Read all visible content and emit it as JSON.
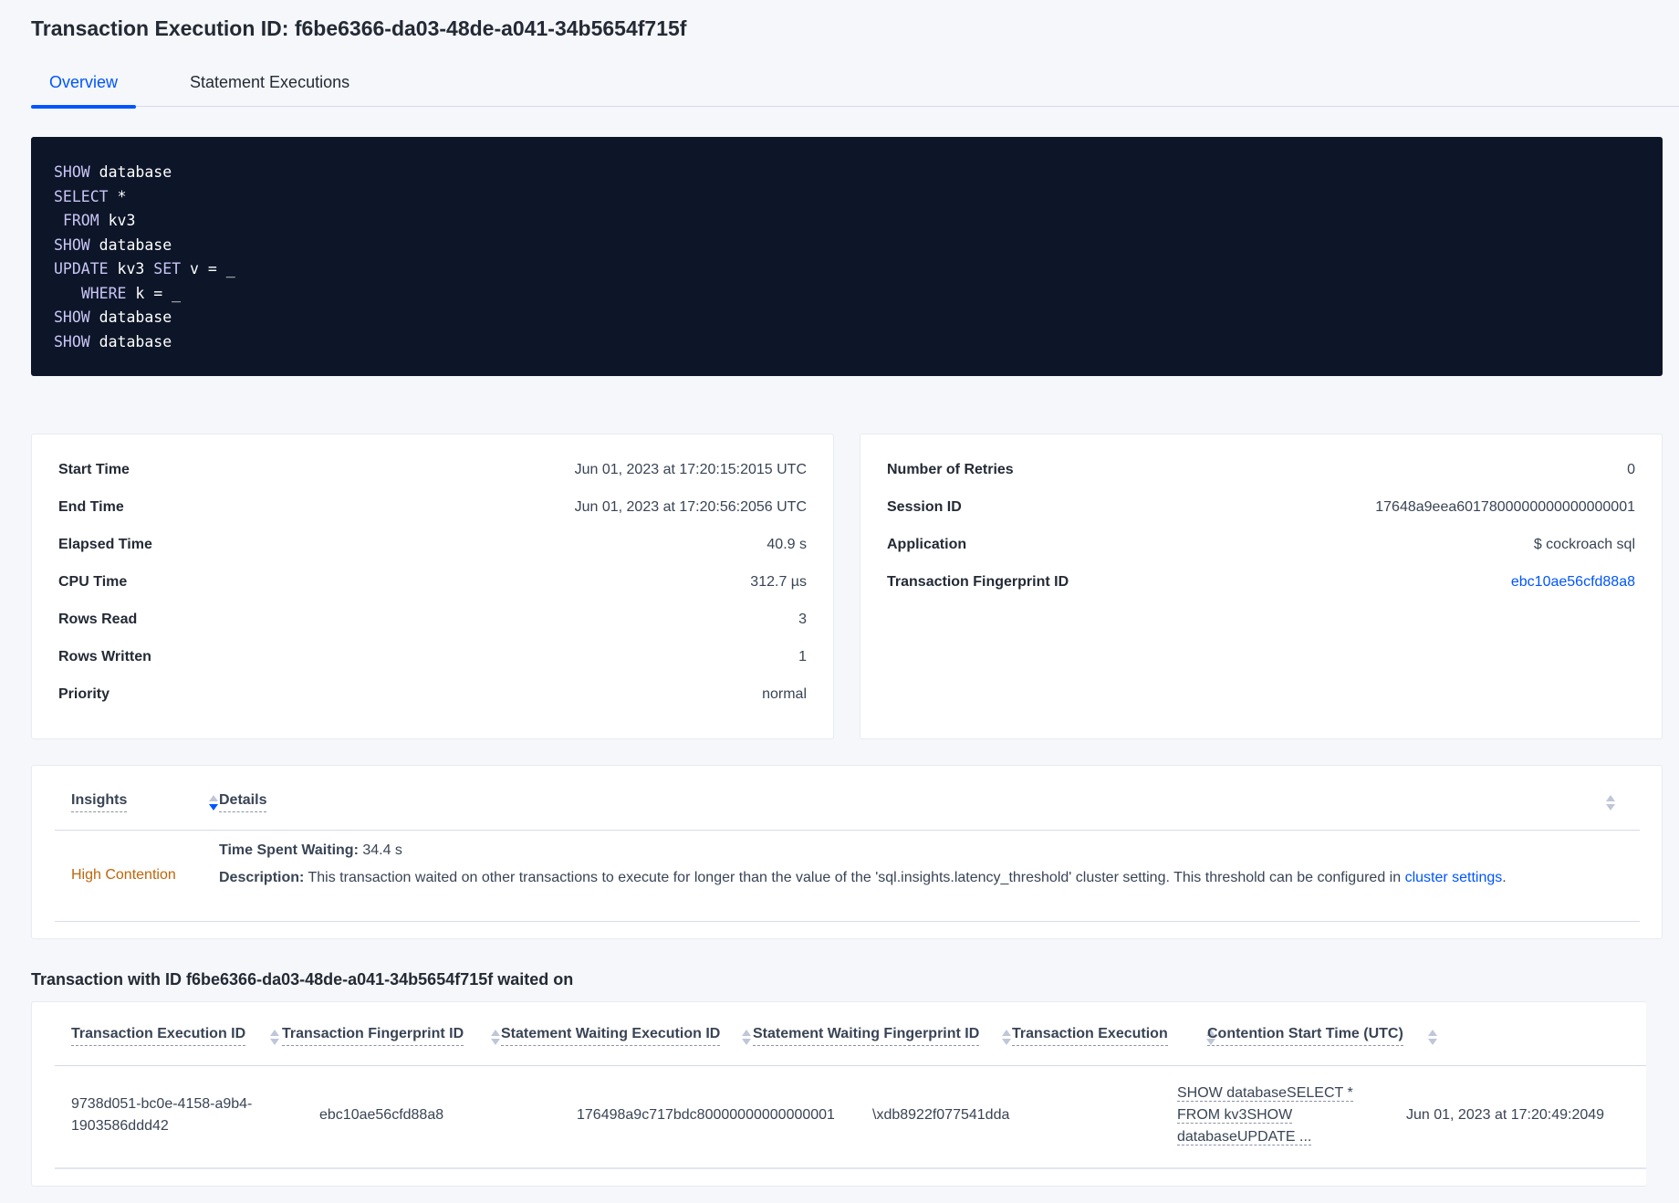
{
  "title": "Transaction Execution ID: f6be6366-da03-48de-a041-34b5654f715f",
  "tabs": [
    {
      "label": "Overview",
      "active": true
    },
    {
      "label": "Statement Executions",
      "active": false
    }
  ],
  "sql": [
    [
      {
        "kw": "SHOW"
      },
      {
        "t": " database"
      }
    ],
    [
      {
        "kw": "SELECT"
      },
      {
        "t": " *"
      }
    ],
    [
      {
        "t": " "
      },
      {
        "kw": "FROM"
      },
      {
        "t": " kv3"
      }
    ],
    [
      {
        "kw": "SHOW"
      },
      {
        "t": " database"
      }
    ],
    [
      {
        "kw": "UPDATE"
      },
      {
        "t": " kv3 "
      },
      {
        "kw": "SET"
      },
      {
        "t": " v = _"
      }
    ],
    [
      {
        "t": "   "
      },
      {
        "kw": "WHERE"
      },
      {
        "t": " k = _"
      }
    ],
    [
      {
        "kw": "SHOW"
      },
      {
        "t": " database"
      }
    ],
    [
      {
        "kw": "SHOW"
      },
      {
        "t": " database"
      }
    ]
  ],
  "left_card": [
    {
      "label": "Start Time",
      "value": "Jun 01, 2023 at 17:20:15:2015 UTC"
    },
    {
      "label": "End Time",
      "value": "Jun 01, 2023 at 17:20:56:2056 UTC"
    },
    {
      "label": "Elapsed Time",
      "value": "40.9 s"
    },
    {
      "label": "CPU Time",
      "value": "312.7 µs"
    },
    {
      "label": "Rows Read",
      "value": "3"
    },
    {
      "label": "Rows Written",
      "value": "1"
    },
    {
      "label": "Priority",
      "value": "normal"
    }
  ],
  "right_card": [
    {
      "label": "Number of Retries",
      "value": "0"
    },
    {
      "label": "Session ID",
      "value": "17648a9eea6017800000000000000001"
    },
    {
      "label": "Application",
      "value": "$ cockroach sql"
    },
    {
      "label": "Transaction Fingerprint ID",
      "value": "ebc10ae56cfd88a8",
      "link": true
    }
  ],
  "insights": {
    "headers": {
      "insights": "Insights",
      "details": "Details"
    },
    "row": {
      "insight": "High Contention",
      "insight_color": "#c0650a",
      "time_label": "Time Spent Waiting:",
      "time_value": " 34.4 s",
      "desc_label": "Description:",
      "desc_text": " This transaction waited on other transactions to execute for longer than the value of the 'sql.insights.latency_threshold' cluster setting. This threshold can be configured in ",
      "desc_link": "cluster settings",
      "desc_end": "."
    }
  },
  "waited_on": {
    "heading": "Transaction with ID f6be6366-da03-48de-a041-34b5654f715f waited on",
    "columns": [
      "Transaction Execution ID",
      "Transaction Fingerprint ID",
      "Statement Waiting Execution ID",
      "Statement Waiting Fingerprint ID",
      "Transaction Execution",
      "Contention Start Time (UTC)"
    ],
    "row": {
      "txn_exec_id": "9738d051-bc0e-4158-a9b4-1903586ddd42",
      "txn_fp_id": "ebc10ae56cfd88a8",
      "stmt_exec_id": "176498a9c717bdc80000000000000001",
      "stmt_fp_id": "\\xdb8922f077541dda",
      "txn_exec_lines": [
        "SHOW databaseSELECT *",
        "FROM kv3SHOW",
        "databaseUPDATE ..."
      ],
      "start_time": "Jun 01, 2023 at 17:20:49:2049"
    }
  }
}
